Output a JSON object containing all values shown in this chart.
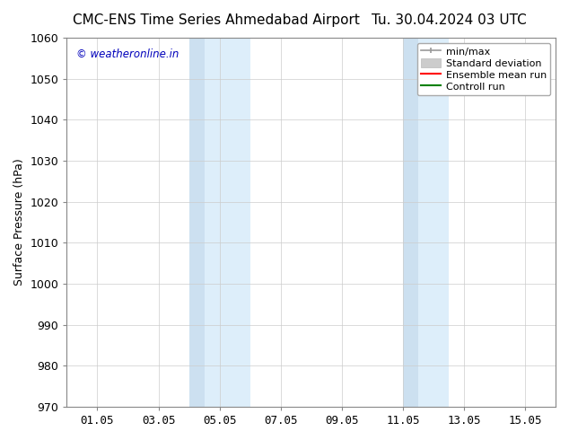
{
  "title_left": "CMC-ENS Time Series Ahmedabad Airport",
  "title_right": "Tu. 30.04.2024 03 UTC",
  "ylabel": "Surface Pressure (hPa)",
  "ylim": [
    970,
    1060
  ],
  "yticks": [
    970,
    980,
    990,
    1000,
    1010,
    1020,
    1030,
    1040,
    1050,
    1060
  ],
  "xtick_labels": [
    "01.05",
    "03.05",
    "05.05",
    "07.05",
    "09.05",
    "11.05",
    "13.05",
    "15.05"
  ],
  "xtick_positions": [
    1,
    3,
    5,
    7,
    9,
    11,
    13,
    15
  ],
  "xlim": [
    0,
    16
  ],
  "shaded_band1_x1": 4.0,
  "shaded_band1_x2": 4.5,
  "shaded_band1_x3": 6.0,
  "shaded_band2_x1": 11.0,
  "shaded_band2_x2": 11.5,
  "shaded_band2_x3": 12.5,
  "shade_color_dark": "#cce0f0",
  "shade_color_light": "#ddeefa",
  "watermark_text": "© weatheronline.in",
  "watermark_color": "#0000bb",
  "bg_color": "#ffffff",
  "plot_bg_color": "#ffffff",
  "grid_color": "#cccccc",
  "tick_label_fontsize": 9,
  "title_fontsize": 11,
  "axis_label_fontsize": 9,
  "legend_fontsize": 8
}
